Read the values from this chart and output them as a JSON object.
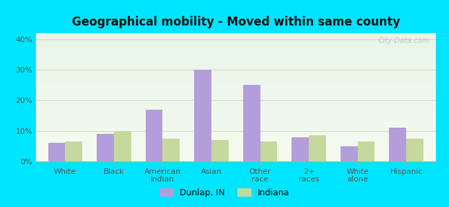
{
  "title": "Geographical mobility - Moved within same county",
  "categories": [
    "White",
    "Black",
    "American\nIndian",
    "Asian",
    "Other\nrace",
    "2+\nraces",
    "White\nalone",
    "Hispanic"
  ],
  "dunlap_values": [
    6,
    9,
    17,
    30,
    25,
    8,
    5,
    11
  ],
  "indiana_values": [
    6.5,
    10,
    7.5,
    7,
    6.5,
    8.5,
    6.5,
    7.5
  ],
  "dunlap_color": "#b39ddb",
  "indiana_color": "#c5d89d",
  "bar_width": 0.35,
  "ylim": [
    0,
    42
  ],
  "yticks": [
    0,
    10,
    20,
    30,
    40
  ],
  "ytick_labels": [
    "0%",
    "10%",
    "20%",
    "30%",
    "40%"
  ],
  "background_outer": "#00e5ff",
  "bg_top": "#e8f5e8",
  "bg_bottom": "#f5faf0",
  "grid_color": "#d0ddc0",
  "title_fontsize": 12,
  "tick_fontsize": 8,
  "legend_label_dunlap": "Dunlap, IN",
  "legend_label_indiana": "Indiana",
  "watermark": "City-Data.com"
}
